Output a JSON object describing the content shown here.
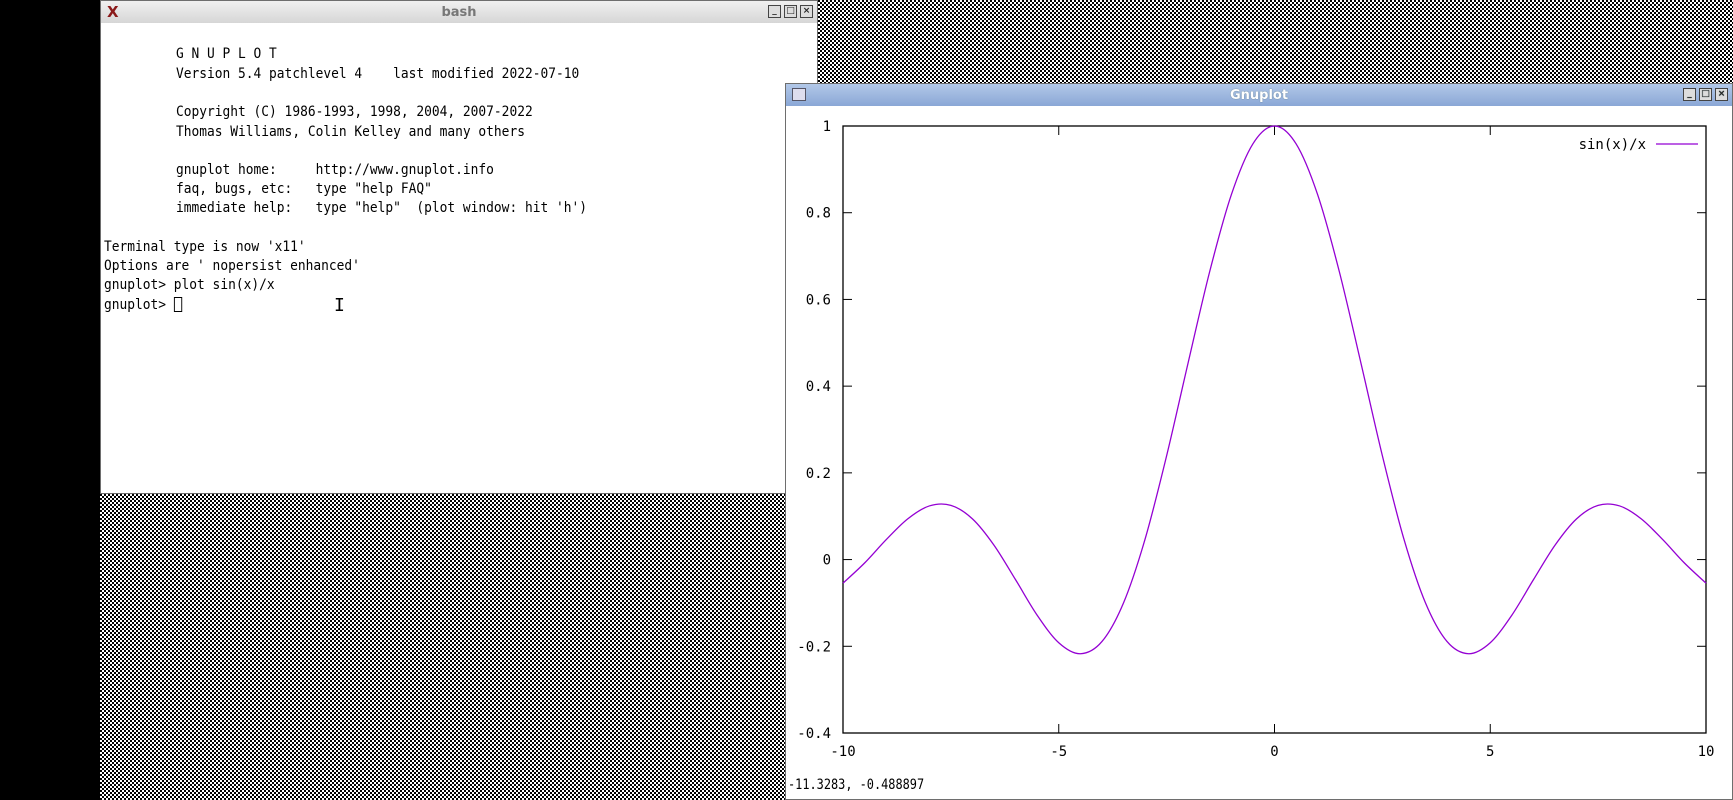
{
  "bash_window": {
    "title": "bash",
    "lines": [
      "G N U P L O T",
      "Version 5.4 patchlevel 4    last modified 2022-07-10",
      "Copyright (C) 1986-1993, 1998, 2004, 2007-2022",
      "Thomas Williams, Colin Kelley and many others",
      "gnuplot home:     http://www.gnuplot.info",
      "faq, bugs, etc:   type \"help FAQ\"",
      "immediate help:   type \"help\"  (plot window: hit 'h')",
      "Terminal type is now 'x11'",
      "Options are ' nopersist enhanced'",
      "gnuplot> plot sin(x)/x",
      "gnuplot> "
    ]
  },
  "gnuplot_window": {
    "title": "Gnuplot",
    "status": "-11.3283, -0.488897"
  },
  "chart_data": {
    "type": "line",
    "xlim": [
      -10,
      10
    ],
    "ylim": [
      -0.4,
      1
    ],
    "xticks": [
      "-10",
      "-5",
      "0",
      "5",
      "10"
    ],
    "yticks": [
      "-0.4",
      "-0.2",
      "0",
      "0.2",
      "0.4",
      "0.6",
      "0.8",
      "1"
    ],
    "legend_position": "top-right",
    "grid": false,
    "series": [
      {
        "name": "sin(x)/x",
        "color": "#9400d3",
        "x": [
          -10,
          -9.5,
          -9,
          -8.5,
          -8,
          -7.5,
          -7,
          -6.5,
          -6,
          -5.5,
          -5,
          -4.5,
          -4,
          -3.5,
          -3,
          -2.5,
          -2,
          -1.5,
          -1,
          -0.5,
          0,
          0.5,
          1,
          1.5,
          2,
          2.5,
          3,
          3.5,
          4,
          4.5,
          5,
          5.5,
          6,
          6.5,
          7,
          7.5,
          8,
          8.5,
          9,
          9.5,
          10
        ],
        "y": [
          -0.0544,
          -0.0079,
          0.0458,
          0.0939,
          0.1237,
          0.1251,
          0.0939,
          0.0331,
          -0.0466,
          -0.1283,
          -0.1918,
          -0.2172,
          -0.1892,
          -0.1002,
          0.047,
          0.2394,
          0.4546,
          0.665,
          0.8415,
          0.9589,
          1,
          0.9589,
          0.8415,
          0.665,
          0.4546,
          0.2394,
          0.047,
          -0.1002,
          -0.1892,
          -0.2172,
          -0.1918,
          -0.1283,
          -0.0466,
          0.0331,
          0.0939,
          0.1251,
          0.1237,
          0.0939,
          0.0458,
          -0.0079,
          -0.0544
        ]
      }
    ]
  }
}
